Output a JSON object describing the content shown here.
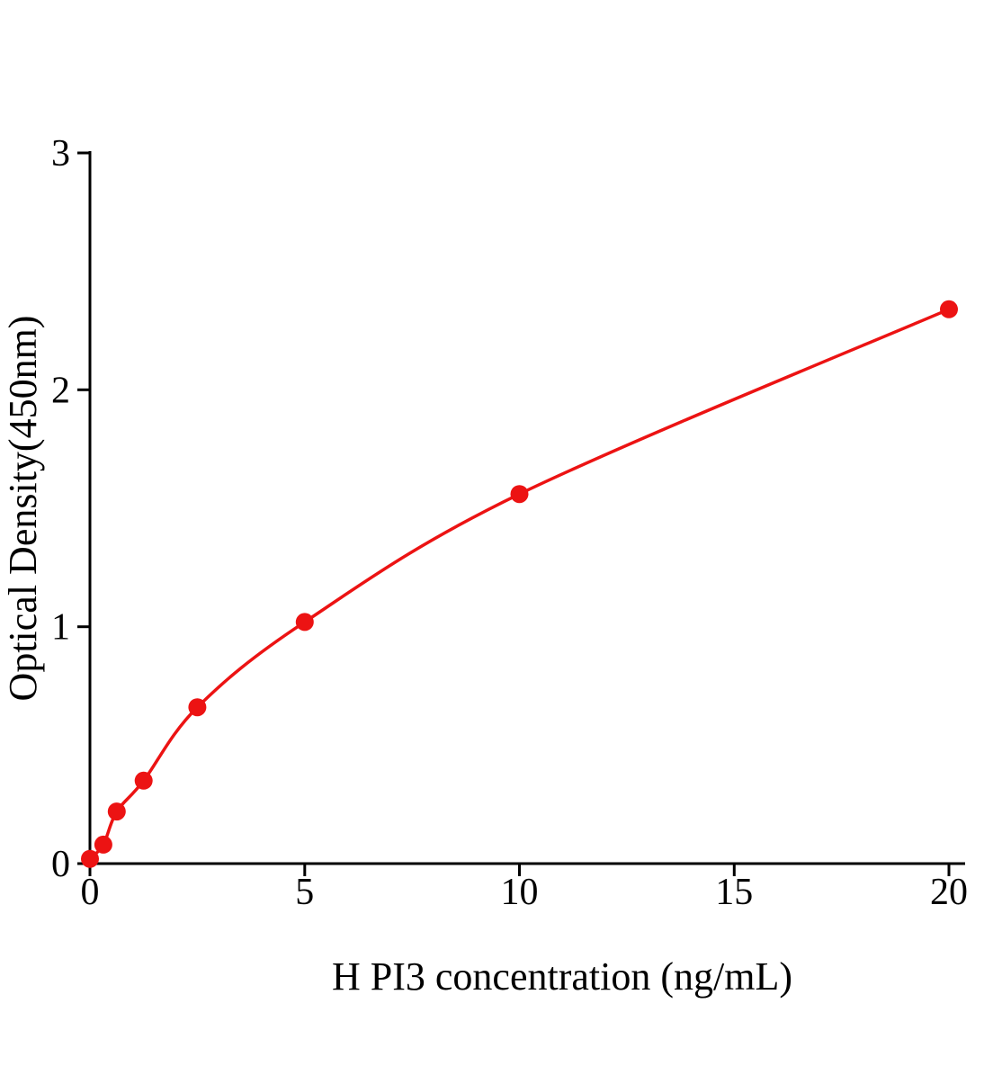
{
  "figure": {
    "background": "#ffffff"
  },
  "chart_data": {
    "type": "line",
    "subtype": "scatter-with-fit-curve",
    "title": "",
    "xlabel": "H PI3 concentration (ng/mL)",
    "ylabel": "Optical Density(450nm)",
    "x": [
      0,
      0.3125,
      0.625,
      1.25,
      2.5,
      5,
      10,
      20
    ],
    "y": [
      0.02,
      0.08,
      0.22,
      0.35,
      0.66,
      1.02,
      1.56,
      2.34
    ],
    "xlim": [
      0,
      20
    ],
    "ylim": [
      0,
      3
    ],
    "xticks": [
      0,
      5,
      10,
      15,
      20
    ],
    "xtick_labels": [
      "0",
      "5",
      "10",
      "15",
      "20"
    ],
    "yticks": [
      0,
      1,
      2,
      3
    ],
    "ytick_labels": [
      "0",
      "1",
      "2",
      "3"
    ],
    "grid": false,
    "legend_position": "none",
    "color": "#ec1313",
    "axis_color": "#000000",
    "marker_radius": 10,
    "line_width": 3.5
  }
}
